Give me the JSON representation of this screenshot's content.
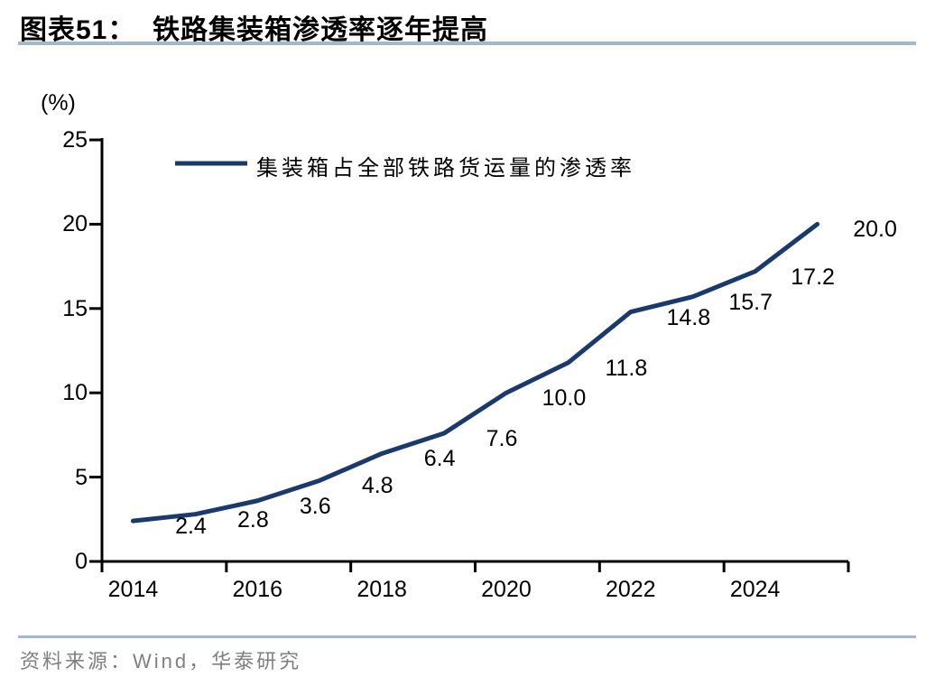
{
  "page": {
    "title": "图表51：  铁路集装箱渗透率逐年提高",
    "source": "资料来源：Wind，华泰研究"
  },
  "chart_data": {
    "type": "line",
    "title": "铁路集装箱渗透率逐年提高",
    "legend": [
      {
        "label": "集装箱占全部铁路货运量的渗透率",
        "color": "#1a3a6e"
      }
    ],
    "legend_position": "top-left-inside",
    "x": [
      2014,
      2015,
      2016,
      2017,
      2018,
      2019,
      2020,
      2021,
      2022,
      2023,
      2024,
      2025
    ],
    "series": [
      {
        "name": "集装箱占全部铁路货运量的渗透率",
        "values": [
          2.4,
          2.8,
          3.6,
          4.8,
          6.4,
          7.6,
          10.0,
          11.8,
          14.8,
          15.7,
          17.2,
          20.0
        ]
      }
    ],
    "point_labels": [
      "2.4",
      "2.8",
      "3.6",
      "4.8",
      "6.4",
      "7.6",
      "10.0",
      "11.8",
      "14.8",
      "15.7",
      "17.2",
      "20.0"
    ],
    "x_tick_labels": [
      "2014",
      "2016",
      "2018",
      "2020",
      "2022",
      "2024"
    ],
    "y_ticks": [
      0,
      5,
      10,
      15,
      20,
      25
    ],
    "ylim": [
      0,
      25
    ],
    "ylabel": "(%)",
    "xlabel": "",
    "grid": false,
    "line_color": "#1a3a6e",
    "axis_color": "#000000",
    "rule_color": "#a5b7cd",
    "source_color": "#7f7f7f"
  }
}
